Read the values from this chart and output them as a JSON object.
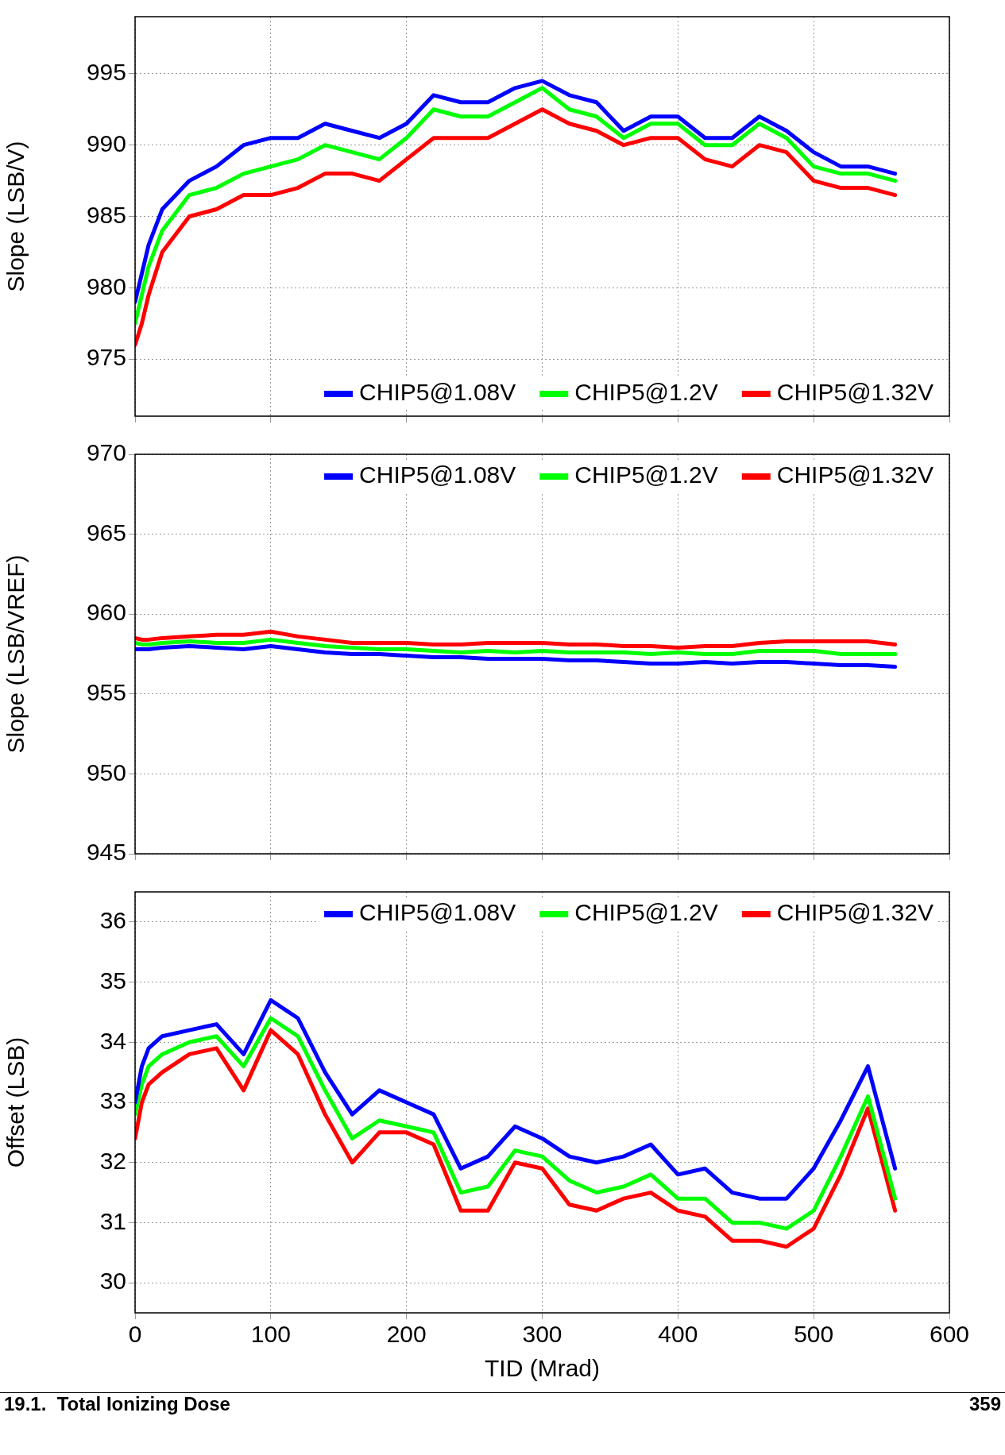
{
  "chart_data": [
    {
      "type": "line",
      "ylabel": "Slope (LSB/V)",
      "x": [
        0,
        5,
        10,
        20,
        40,
        60,
        80,
        100,
        120,
        140,
        160,
        180,
        200,
        220,
        240,
        260,
        280,
        300,
        320,
        340,
        360,
        380,
        400,
        420,
        440,
        460,
        480,
        500,
        520,
        540,
        560
      ],
      "xlim": [
        0,
        600
      ],
      "xticks": [
        0,
        100,
        200,
        300,
        400,
        500,
        600
      ],
      "ylim": [
        971,
        999
      ],
      "yticks": [
        975,
        980,
        985,
        990,
        995
      ],
      "tick_labels": "y",
      "grid": true,
      "legend": "bottom right",
      "marker": "none",
      "line_style": "solid",
      "series": [
        {
          "name": "CHIP5@1.08V",
          "color": "#0000ff",
          "values": [
            979,
            981,
            983,
            985.5,
            987.5,
            988.5,
            990,
            990.5,
            990.5,
            991.5,
            991,
            990.5,
            991.5,
            993.5,
            993,
            993,
            994,
            994.5,
            993.5,
            993,
            991,
            992,
            992,
            990.5,
            990.5,
            992,
            991,
            989.5,
            988.5,
            988.5,
            988
          ]
        },
        {
          "name": "CHIP5@1.2V",
          "color": "#00ff00",
          "values": [
            977.5,
            979.5,
            981.5,
            984,
            986.5,
            987,
            988,
            988.5,
            989,
            990,
            989.5,
            989,
            990.5,
            992.5,
            992,
            992,
            993,
            994,
            992.5,
            992,
            990.5,
            991.5,
            991.5,
            990,
            990,
            991.5,
            990.5,
            988.5,
            988,
            988,
            987.5
          ]
        },
        {
          "name": "CHIP5@1.32V",
          "color": "#ff0000",
          "values": [
            976,
            977.5,
            979.5,
            982.5,
            985,
            985.5,
            986.5,
            986.5,
            987,
            988,
            988,
            987.5,
            989,
            990.5,
            990.5,
            990.5,
            991.5,
            992.5,
            991.5,
            991,
            990,
            990.5,
            990.5,
            989,
            988.5,
            990,
            989.5,
            987.5,
            987,
            987,
            986.5
          ]
        }
      ]
    },
    {
      "type": "line",
      "ylabel": "Slope (LSB/VREF)",
      "x": [
        0,
        5,
        10,
        20,
        40,
        60,
        80,
        100,
        120,
        140,
        160,
        180,
        200,
        220,
        240,
        260,
        280,
        300,
        320,
        340,
        360,
        380,
        400,
        420,
        440,
        460,
        480,
        500,
        520,
        540,
        560
      ],
      "xlim": [
        0,
        600
      ],
      "xticks": [
        0,
        100,
        200,
        300,
        400,
        500,
        600
      ],
      "ylim": [
        945,
        970
      ],
      "yticks": [
        945,
        950,
        955,
        960,
        965,
        970
      ],
      "tick_labels": "y",
      "grid": true,
      "legend": "top right",
      "marker": "none",
      "line_style": "solid",
      "series": [
        {
          "name": "CHIP5@1.08V",
          "color": "#0000ff",
          "values": [
            957.8,
            957.8,
            957.8,
            957.9,
            958,
            957.9,
            957.8,
            958,
            957.8,
            957.6,
            957.5,
            957.5,
            957.4,
            957.3,
            957.3,
            957.2,
            957.2,
            957.2,
            957.1,
            957.1,
            957,
            956.9,
            956.9,
            957,
            956.9,
            957,
            957,
            956.9,
            956.8,
            956.8,
            956.7
          ]
        },
        {
          "name": "CHIP5@1.2V",
          "color": "#00ff00",
          "values": [
            958.2,
            958.1,
            958.1,
            958.2,
            958.3,
            958.2,
            958.2,
            958.4,
            958.2,
            958,
            957.9,
            957.8,
            957.8,
            957.7,
            957.6,
            957.7,
            957.6,
            957.7,
            957.6,
            957.6,
            957.6,
            957.5,
            957.6,
            957.5,
            957.5,
            957.7,
            957.7,
            957.7,
            957.5,
            957.5,
            957.5
          ]
        },
        {
          "name": "CHIP5@1.32V",
          "color": "#ff0000",
          "values": [
            958.5,
            958.4,
            958.4,
            958.5,
            958.6,
            958.7,
            958.7,
            958.9,
            958.6,
            958.4,
            958.2,
            958.2,
            958.2,
            958.1,
            958.1,
            958.2,
            958.2,
            958.2,
            958.1,
            958.1,
            958,
            958,
            957.9,
            958,
            958,
            958.2,
            958.3,
            958.3,
            958.3,
            958.3,
            958.1
          ]
        }
      ]
    },
    {
      "type": "line",
      "xlabel": "TID (Mrad)",
      "ylabel": "Offset (LSB)",
      "x": [
        0,
        5,
        10,
        20,
        40,
        60,
        80,
        100,
        120,
        140,
        160,
        180,
        200,
        220,
        240,
        260,
        280,
        300,
        320,
        340,
        360,
        380,
        400,
        420,
        440,
        460,
        480,
        500,
        520,
        540,
        560
      ],
      "xlim": [
        0,
        600
      ],
      "xticks": [
        0,
        100,
        200,
        300,
        400,
        500,
        600
      ],
      "ylim": [
        29.5,
        36.5
      ],
      "yticks": [
        30,
        31,
        32,
        33,
        34,
        35,
        36
      ],
      "grid": true,
      "legend": "top right",
      "marker": "none",
      "line_style": "solid",
      "annotations": [
        "19.1.  Total Ionizing Dose",
        "359"
      ],
      "series": [
        {
          "name": "CHIP5@1.08V",
          "color": "#0000ff",
          "values": [
            33,
            33.6,
            33.9,
            34.1,
            34.2,
            34.3,
            33.8,
            34.7,
            34.4,
            33.5,
            32.8,
            33.2,
            33,
            32.8,
            31.9,
            32.1,
            32.6,
            32.4,
            32.1,
            32,
            32.1,
            32.3,
            31.8,
            31.9,
            31.5,
            31.4,
            31.4,
            31.9,
            32.7,
            33.6,
            31.9
          ]
        },
        {
          "name": "CHIP5@1.2V",
          "color": "#00ff00",
          "values": [
            32.8,
            33.3,
            33.6,
            33.8,
            34,
            34.1,
            33.6,
            34.4,
            34.1,
            33.2,
            32.4,
            32.7,
            32.6,
            32.5,
            31.5,
            31.6,
            32.2,
            32.1,
            31.7,
            31.5,
            31.6,
            31.8,
            31.4,
            31.4,
            31,
            31,
            30.9,
            31.2,
            32.1,
            33.1,
            31.4
          ]
        },
        {
          "name": "CHIP5@1.32V",
          "color": "#ff0000",
          "values": [
            32.4,
            33,
            33.3,
            33.5,
            33.8,
            33.9,
            33.2,
            34.2,
            33.8,
            32.8,
            32,
            32.5,
            32.5,
            32.3,
            31.2,
            31.2,
            32,
            31.9,
            31.3,
            31.2,
            31.4,
            31.5,
            31.2,
            31.1,
            30.7,
            30.7,
            30.6,
            30.9,
            31.8,
            32.9,
            31.2
          ]
        }
      ]
    }
  ]
}
